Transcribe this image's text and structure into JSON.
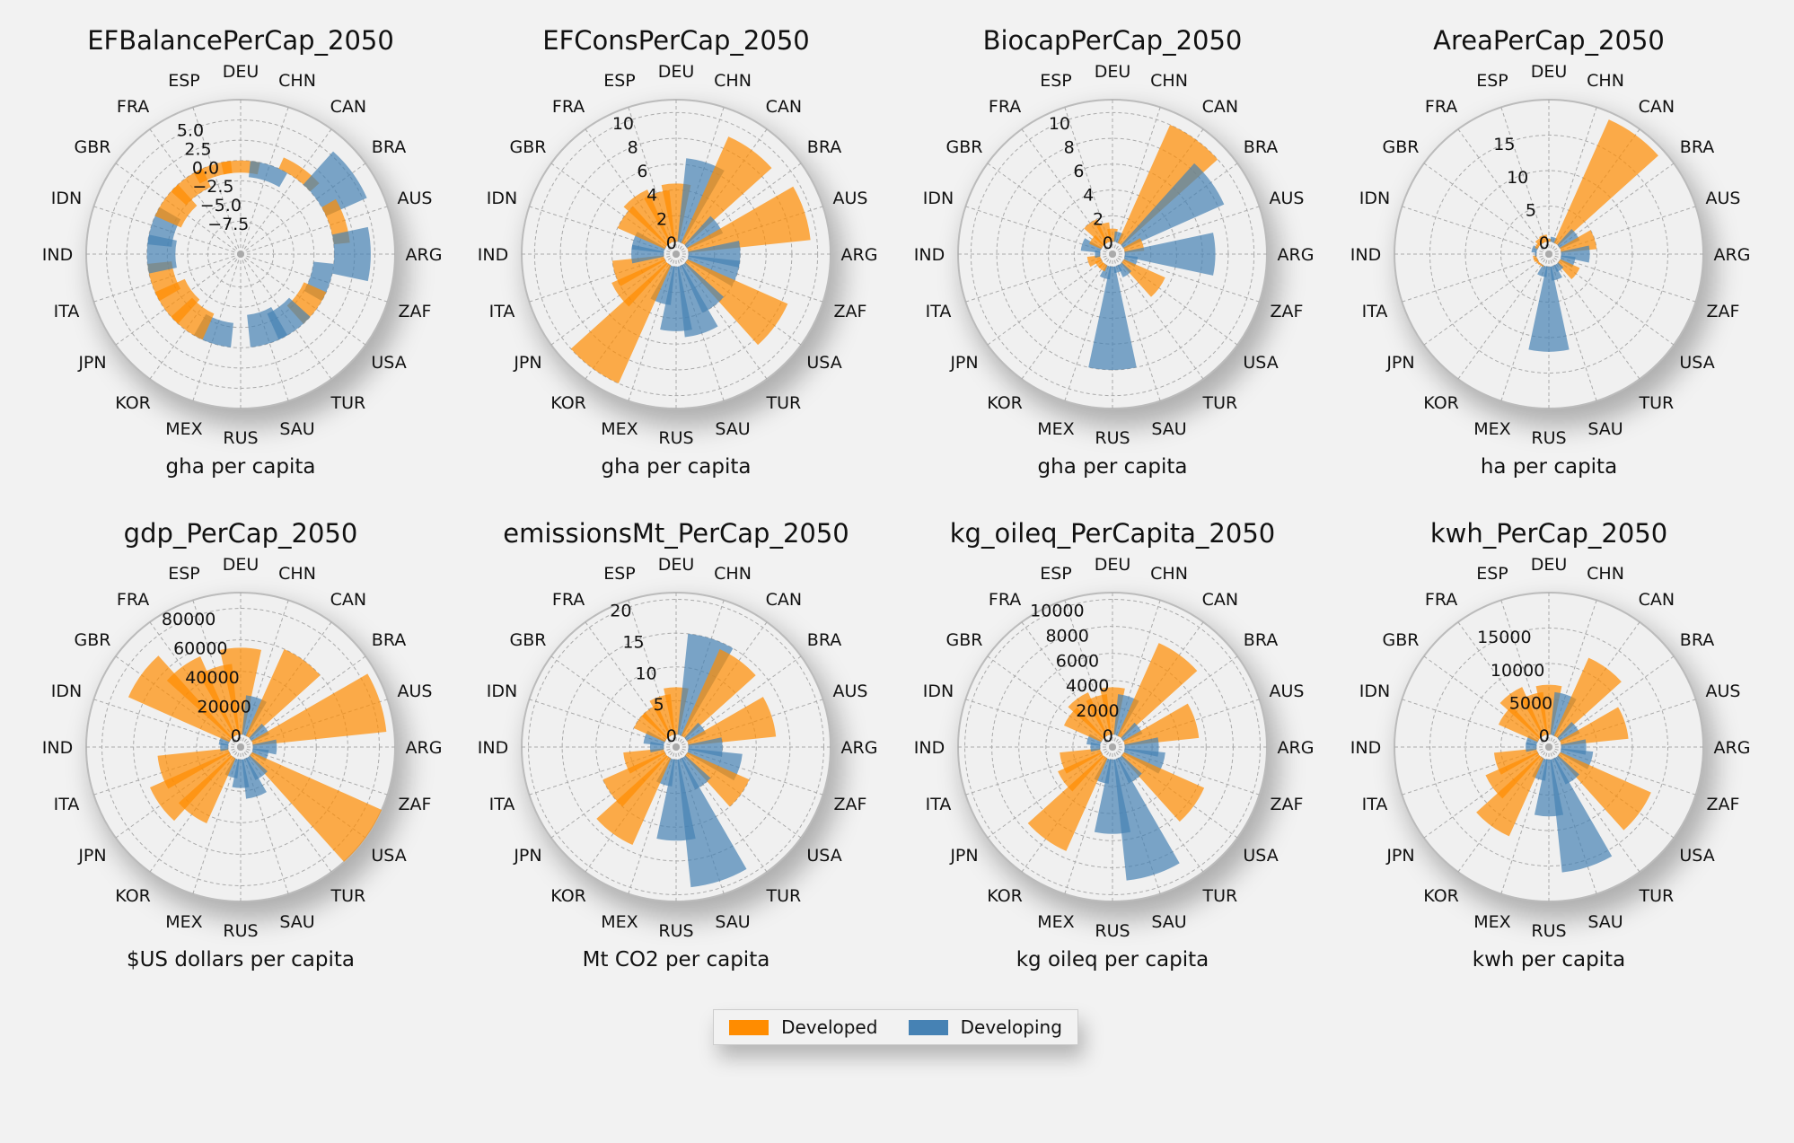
{
  "chart_data": [
    {
      "type": "bar",
      "polar": true,
      "title": "EFBalancePerCap_2050",
      "xlabel": "gha per capita",
      "rlim": [
        -10,
        7.5
      ],
      "rticks": [
        "−7.5",
        "−5.0",
        "−2.5",
        "0.0",
        "2.5",
        "5.0"
      ],
      "rtick_values": [
        -7.5,
        -5,
        -2.5,
        0,
        2.5,
        5
      ],
      "values": [
        -1.5,
        -2,
        1.5,
        5.5,
        2,
        4.5,
        -2.5,
        -3,
        -3.5,
        -4,
        0,
        -3,
        -3.5,
        -4,
        -3,
        -3.5,
        -3,
        -3.5,
        -2.5,
        -1.5
      ]
    },
    {
      "type": "bar",
      "polar": true,
      "title": "EFConsPerCap_2050",
      "xlabel": "gha per capita",
      "rlim": [
        0,
        11
      ],
      "rticks": [
        "0",
        "2",
        "4",
        "6",
        "8",
        "10"
      ],
      "rtick_values": [
        0,
        2,
        4,
        6,
        8,
        10
      ],
      "values": [
        4.5,
        6.5,
        9,
        3,
        9.5,
        4,
        4,
        8.5,
        4,
        5.5,
        5,
        3,
        10,
        4.5,
        4,
        2.5,
        2.5,
        4,
        4.5,
        4
      ]
    },
    {
      "type": "bar",
      "polar": true,
      "title": "BiocapPerCap_2050",
      "xlabel": "gha per capita",
      "rlim": [
        0,
        11
      ],
      "rticks": [
        "0",
        "2",
        "4",
        "6",
        "8",
        "10"
      ],
      "rtick_values": [
        0,
        2,
        4,
        6,
        8,
        10
      ],
      "values": [
        1,
        0.8,
        10,
        8.5,
        1.5,
        7,
        1,
        3.5,
        1,
        0.5,
        8,
        1,
        0.5,
        0.5,
        1,
        0.4,
        1.5,
        1,
        2,
        1.5
      ]
    },
    {
      "type": "bar",
      "polar": true,
      "title": "AreaPerCap_2050",
      "xlabel": "ha per capita",
      "rlim": [
        0,
        20
      ],
      "rticks": [
        "0",
        "5",
        "10",
        "15"
      ],
      "rtick_values": [
        0,
        5,
        10,
        15
      ],
      "values": [
        0.4,
        0.7,
        19,
        3,
        5,
        4,
        2,
        3,
        1,
        2,
        12,
        1.5,
        0.2,
        0.3,
        0.5,
        0.2,
        0.7,
        0.4,
        0.8,
        1
      ]
    },
    {
      "type": "bar",
      "polar": true,
      "title": "gdp_PerCap_2050",
      "xlabel": "$US dollars per capita",
      "rlim": [
        0,
        90000
      ],
      "rticks": [
        "0",
        "20000",
        "40000",
        "60000",
        "80000"
      ],
      "rtick_values": [
        0,
        20000,
        40000,
        60000,
        80000
      ],
      "values": [
        55000,
        25000,
        60000,
        12000,
        85000,
        15000,
        10000,
        90000,
        15000,
        25000,
        18000,
        12000,
        45000,
        55000,
        45000,
        5000,
        6000,
        70000,
        55000,
        45000
      ]
    },
    {
      "type": "bar",
      "polar": true,
      "title": "emissionsMt_PerCap_2050",
      "xlabel": "Mt CO2 per capita",
      "rlim": [
        0,
        21
      ],
      "rticks": [
        "0",
        "5",
        "10",
        "15",
        "20"
      ],
      "rtick_values": [
        0,
        5,
        10,
        15,
        20
      ],
      "values": [
        7,
        15,
        14,
        3,
        13,
        5,
        8,
        10,
        5,
        19,
        12,
        4,
        14,
        10,
        6,
        2,
        3,
        5,
        5,
        6
      ]
    },
    {
      "type": "bar",
      "polar": true,
      "title": "kg_oileq_PerCapita_2050",
      "xlabel": "kg oileq per capita",
      "rlim": [
        0,
        10500
      ],
      "rticks": [
        "0",
        "2000",
        "4000",
        "6000",
        "8000",
        "10000"
      ],
      "rtick_values": [
        0,
        2000,
        4000,
        6000,
        8000,
        10000
      ],
      "values": [
        3500,
        3000,
        7500,
        1500,
        5500,
        2500,
        3000,
        6500,
        2000,
        9000,
        5500,
        1800,
        7500,
        3500,
        3000,
        700,
        1000,
        3000,
        3500,
        3000
      ]
    },
    {
      "type": "bar",
      "polar": true,
      "title": "kwh_PerCap_2050",
      "xlabel": "kwh per capita",
      "rlim": [
        0,
        20000
      ],
      "rticks": [
        "0",
        "5000",
        "10000",
        "15000"
      ],
      "rtick_values": [
        0,
        5000,
        10000,
        15000
      ],
      "values": [
        7000,
        6000,
        12000,
        3000,
        9500,
        3500,
        4500,
        14000,
        4000,
        16000,
        8000,
        3000,
        12000,
        8000,
        6000,
        1500,
        1500,
        6000,
        7500,
        6000
      ]
    }
  ],
  "categories": [
    "DEU",
    "CHN",
    "CAN",
    "BRA",
    "AUS",
    "ARG",
    "ZAF",
    "USA",
    "TUR",
    "SAU",
    "RUS",
    "MEX",
    "KOR",
    "JPN",
    "ITA",
    "IND",
    "IDN",
    "GBR",
    "FRA",
    "ESP"
  ],
  "groups": [
    "Developed",
    "Developing",
    "Developed",
    "Developing",
    "Developed",
    "Developing",
    "Developing",
    "Developed",
    "Developing",
    "Developing",
    "Developing",
    "Developing",
    "Developed",
    "Developed",
    "Developed",
    "Developing",
    "Developing",
    "Developed",
    "Developed",
    "Developed"
  ],
  "legend": {
    "position": "bottom-center",
    "items": [
      {
        "label": "Developed",
        "color": "#ff8c00"
      },
      {
        "label": "Developing",
        "color": "#4682b4"
      }
    ]
  },
  "colors": {
    "Developed": "#ff8c00",
    "Developing": "#4682b4"
  }
}
